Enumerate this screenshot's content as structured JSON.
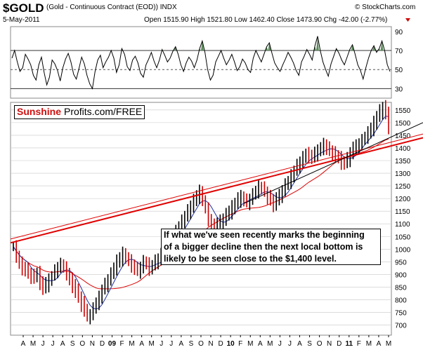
{
  "header": {
    "symbol": "$GOLD",
    "description": "(Gold - Continuous Contract (EOD)) INDX",
    "copyright": "© StockCharts.com",
    "date": "5-May-2011",
    "ohlc": "Open 1515.90  High 1521.80  Low 1462.40  Close 1473.90  Chg -42.00 (-2.77%)"
  },
  "logo": {
    "red_text": "Sunshine",
    "black_text": "Profits.com/FREE"
  },
  "annotation": {
    "lines": [
      "If what we've seen recently marks the beginning",
      "of a bigger decline then the next local bottom is",
      "likely to be seen close to the $1,400 level."
    ]
  },
  "colors": {
    "price": "#000000",
    "price_down": "#cc0000",
    "ma_fast": "#1f2f9e",
    "ma_slow": "#dd0000",
    "trend_red": "#e00000",
    "trend_black": "#000000",
    "rsi_fill": "#5b8c5b",
    "grid": "#c8c8c8"
  },
  "chart_data": [
    {
      "type": "line",
      "name": "rsi",
      "ylim": [
        20,
        95
      ],
      "y_ticks": [
        90,
        70,
        50,
        30
      ],
      "reference_lines": [
        70,
        50,
        30
      ],
      "values": [
        62,
        70,
        58,
        48,
        52,
        66,
        61,
        55,
        44,
        39,
        55,
        63,
        47,
        34,
        42,
        60,
        56,
        49,
        38,
        52,
        61,
        67,
        58,
        45,
        40,
        51,
        63,
        56,
        44,
        35,
        30,
        48,
        60,
        65,
        52,
        58,
        63,
        70,
        62,
        47,
        55,
        72,
        66,
        53,
        49,
        60,
        64,
        57,
        46,
        42,
        55,
        61,
        68,
        59,
        52,
        60,
        71,
        65,
        58,
        62,
        69,
        74,
        66,
        55,
        48,
        57,
        63,
        59,
        52,
        60,
        72,
        80,
        68,
        50,
        39,
        44,
        58,
        64,
        70,
        62,
        55,
        60,
        66,
        58,
        49,
        53,
        61,
        57,
        50,
        47,
        62,
        70,
        64,
        58,
        66,
        74,
        78,
        67,
        57,
        52,
        48,
        55,
        61,
        68,
        63,
        57,
        49,
        44,
        58,
        64,
        71,
        66,
        60,
        75,
        85,
        70,
        58,
        50,
        43,
        56,
        64,
        72,
        67,
        60,
        55,
        63,
        71,
        76,
        66,
        55,
        49,
        40,
        52,
        62,
        70,
        75,
        68,
        72,
        80,
        70,
        55,
        48
      ]
    },
    {
      "type": "bar",
      "name": "price",
      "ylim": [
        660,
        1580
      ],
      "y_ticks": [
        1550,
        1500,
        1450,
        1400,
        1350,
        1300,
        1250,
        1200,
        1150,
        1100,
        1050,
        1000,
        950,
        900,
        850,
        800,
        750,
        700
      ],
      "x_tick_labels": [
        "A",
        "M",
        "J",
        "J",
        "A",
        "S",
        "O",
        "N",
        "D",
        "09",
        "F",
        "M",
        "A",
        "M",
        "J",
        "J",
        "A",
        "S",
        "O",
        "N",
        "D",
        "10",
        "F",
        "M",
        "A",
        "M",
        "J",
        "J",
        "A",
        "S",
        "O",
        "N",
        "D",
        "11",
        "F",
        "M",
        "A",
        "M"
      ],
      "values": [
        1010,
        975,
        945,
        930,
        920,
        905,
        895,
        890,
        905,
        870,
        845,
        860,
        880,
        895,
        915,
        930,
        940,
        925,
        905,
        880,
        860,
        835,
        810,
        785,
        760,
        735,
        745,
        765,
        790,
        810,
        840,
        860,
        880,
        900,
        925,
        950,
        965,
        980,
        970,
        955,
        940,
        925,
        915,
        930,
        950,
        940,
        925,
        935,
        950,
        960,
        975,
        995,
        1010,
        1030,
        1050,
        1070,
        1090,
        1110,
        1130,
        1150,
        1170,
        1190,
        1210,
        1225,
        1195,
        1160,
        1120,
        1095,
        1085,
        1105,
        1110,
        1120,
        1135,
        1150,
        1165,
        1180,
        1195,
        1210,
        1195,
        1185,
        1200,
        1215,
        1230,
        1245,
        1240,
        1225,
        1205,
        1195,
        1180,
        1195,
        1215,
        1235,
        1255,
        1270,
        1290,
        1310,
        1330,
        1345,
        1360,
        1375,
        1370,
        1360,
        1375,
        1390,
        1405,
        1415,
        1400,
        1390,
        1380,
        1370,
        1360,
        1345,
        1340,
        1355,
        1380,
        1395,
        1410,
        1420,
        1430,
        1445,
        1460,
        1480,
        1500,
        1525,
        1545,
        1560,
        1540,
        1475
      ]
    }
  ]
}
